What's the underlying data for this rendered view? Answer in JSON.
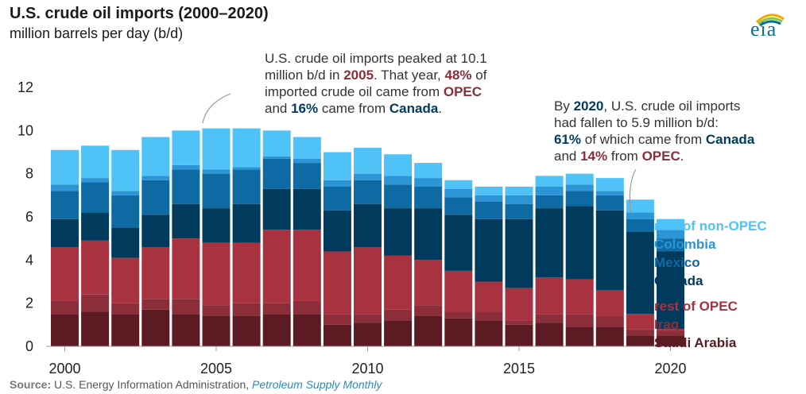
{
  "header": {
    "title": "U.S. crude oil imports (2000–2020)",
    "subtitle": "million barrels per day (b/d)",
    "logo_text": "eia"
  },
  "annotations": {
    "peak": {
      "l1": "U.S. crude oil imports peaked at 10.1",
      "l2a": "million b/d in ",
      "l2b": "2005",
      "l2c": ". That year, ",
      "l2d": "48%",
      "l2e": " of",
      "l3a": "imported crude oil came from ",
      "l3b": "OPEC",
      "l4a": "and ",
      "l4b": "16%",
      "l4c": " came from ",
      "l4d": "Canada",
      "l4e": "."
    },
    "recent": {
      "l1a": "By ",
      "l1b": "2020",
      "l1c": ", U.S. crude oil imports",
      "l2": "had fallen to 5.9 million b/d:",
      "l3a": "61%",
      "l3b": " of which came from ",
      "l3c": "Canada",
      "l4a": "and ",
      "l4b": "14%",
      "l4c": " from ",
      "l4d": "OPEC",
      "l4e": "."
    }
  },
  "source": {
    "label": "Source:",
    "text": " U.S. Energy Information Administration, ",
    "publication": "Petroleum Supply Monthly"
  },
  "chart_data": {
    "type": "bar",
    "stacked": true,
    "title": "U.S. crude oil imports (2000–2020)",
    "ylabel": "million barrels per day (b/d)",
    "xlabel": "",
    "ylim": [
      0,
      12
    ],
    "yticks": [
      0,
      2,
      4,
      6,
      8,
      10,
      12
    ],
    "xticks": [
      "2000",
      "2005",
      "2010",
      "2015",
      "2020"
    ],
    "grid": false,
    "legend_position": "right",
    "categories": [
      "2000",
      "2001",
      "2002",
      "2003",
      "2004",
      "2005",
      "2006",
      "2007",
      "2008",
      "2009",
      "2010",
      "2011",
      "2012",
      "2013",
      "2014",
      "2015",
      "2016",
      "2017",
      "2018",
      "2019",
      "2020"
    ],
    "series": [
      {
        "name": "Saudi Arabia",
        "color": "#5c1a22",
        "values": [
          1.5,
          1.6,
          1.5,
          1.7,
          1.5,
          1.4,
          1.4,
          1.5,
          1.5,
          1.0,
          1.1,
          1.2,
          1.4,
          1.3,
          1.2,
          1.0,
          1.1,
          0.9,
          0.9,
          0.5,
          0.5
        ]
      },
      {
        "name": "Iraq",
        "color": "#8b2e3a",
        "values": [
          0.6,
          0.8,
          0.5,
          0.5,
          0.7,
          0.5,
          0.6,
          0.5,
          0.6,
          0.5,
          0.4,
          0.5,
          0.5,
          0.3,
          0.4,
          0.2,
          0.4,
          0.6,
          0.5,
          0.3,
          0.2
        ]
      },
      {
        "name": "rest of OPEC",
        "color": "#a8323f",
        "values": [
          2.5,
          2.5,
          2.1,
          2.4,
          2.8,
          2.9,
          2.8,
          3.4,
          3.3,
          2.9,
          3.1,
          2.5,
          2.1,
          1.9,
          1.4,
          1.5,
          1.7,
          1.6,
          1.2,
          0.7,
          0.1
        ]
      },
      {
        "name": "Canada",
        "color": "#003a5c",
        "values": [
          1.3,
          1.3,
          1.4,
          1.5,
          1.6,
          1.6,
          1.8,
          1.9,
          1.9,
          1.9,
          2.0,
          2.2,
          2.4,
          2.6,
          2.9,
          3.2,
          3.2,
          3.4,
          3.7,
          3.8,
          3.6
        ]
      },
      {
        "name": "Mexico",
        "color": "#0e6aa3",
        "values": [
          1.3,
          1.4,
          1.5,
          1.6,
          1.6,
          1.6,
          1.6,
          1.4,
          1.2,
          1.1,
          1.1,
          1.1,
          1.0,
          0.8,
          0.8,
          0.7,
          0.6,
          0.7,
          0.7,
          0.6,
          0.6
        ]
      },
      {
        "name": "Colombia",
        "color": "#2b95d6",
        "values": [
          0.3,
          0.2,
          0.2,
          0.2,
          0.2,
          0.2,
          0.1,
          0.1,
          0.2,
          0.3,
          0.3,
          0.4,
          0.4,
          0.4,
          0.3,
          0.4,
          0.4,
          0.3,
          0.2,
          0.3,
          0.4
        ]
      },
      {
        "name": "rest of non-OPEC",
        "color": "#4fc3f7",
        "values": [
          1.6,
          1.5,
          1.9,
          1.8,
          1.6,
          1.9,
          1.8,
          1.2,
          1.0,
          1.3,
          1.2,
          1.0,
          0.7,
          0.4,
          0.4,
          0.4,
          0.5,
          0.5,
          0.6,
          0.6,
          0.5
        ]
      }
    ],
    "annotations": [
      {
        "year": "2005",
        "text": "U.S. crude oil imports peaked at 10.1 million b/d in 2005. That year, 48% of imported crude oil came from OPEC and 16% came from Canada."
      },
      {
        "year": "2020",
        "text": "By 2020, U.S. crude oil imports had fallen to 5.9 million b/d: 61% of which came from Canada and 14% from OPEC."
      }
    ]
  }
}
